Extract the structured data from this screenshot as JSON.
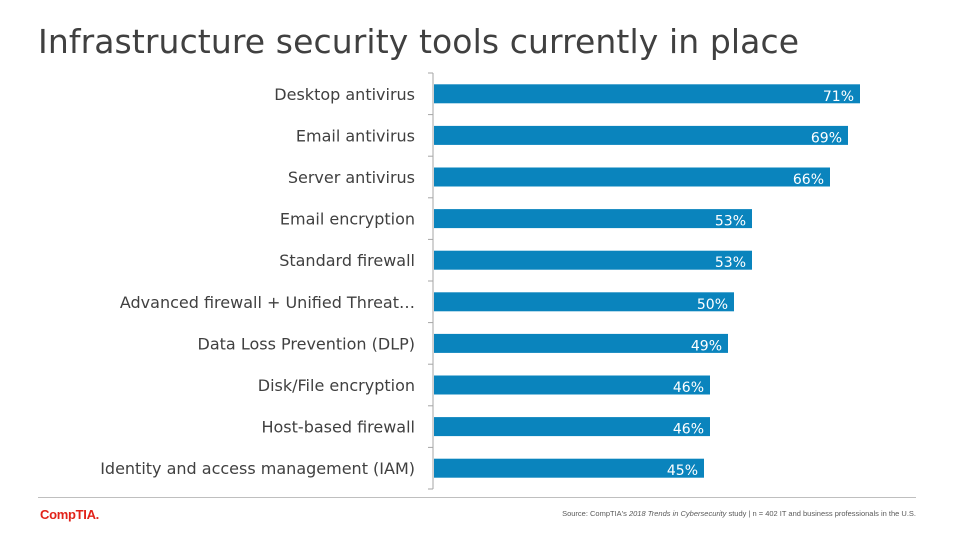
{
  "page": {
    "title": "Infrastructure security tools currently in place"
  },
  "chart_data": {
    "type": "bar",
    "orientation": "horizontal",
    "title": "Infrastructure security tools currently in place",
    "categories": [
      "Desktop antivirus",
      "Email antivirus",
      "Server antivirus",
      "Email encryption",
      "Standard firewall",
      "Advanced firewall + Unified Threat…",
      "Data Loss Prevention (DLP)",
      "Disk/File encryption",
      "Host-based firewall",
      "Identity and access management (IAM)"
    ],
    "values": [
      71,
      69,
      66,
      53,
      53,
      50,
      49,
      46,
      46,
      45
    ],
    "value_labels": [
      "71%",
      "69%",
      "66%",
      "53%",
      "53%",
      "50%",
      "49%",
      "46%",
      "46%",
      "45%"
    ],
    "unit": "%",
    "xlim": [
      0,
      100
    ],
    "grid": false,
    "legend": "none",
    "bar_color": "#0a84bd"
  },
  "footer": {
    "logo": "CompTIA.",
    "source_prefix": "Source: CompTIA's ",
    "source_italic": "2018 Trends in Cybersecurity",
    "source_suffix": " study | n = 402 IT and business professionals in the U.S.",
    "logo_color": "#e2231a"
  }
}
